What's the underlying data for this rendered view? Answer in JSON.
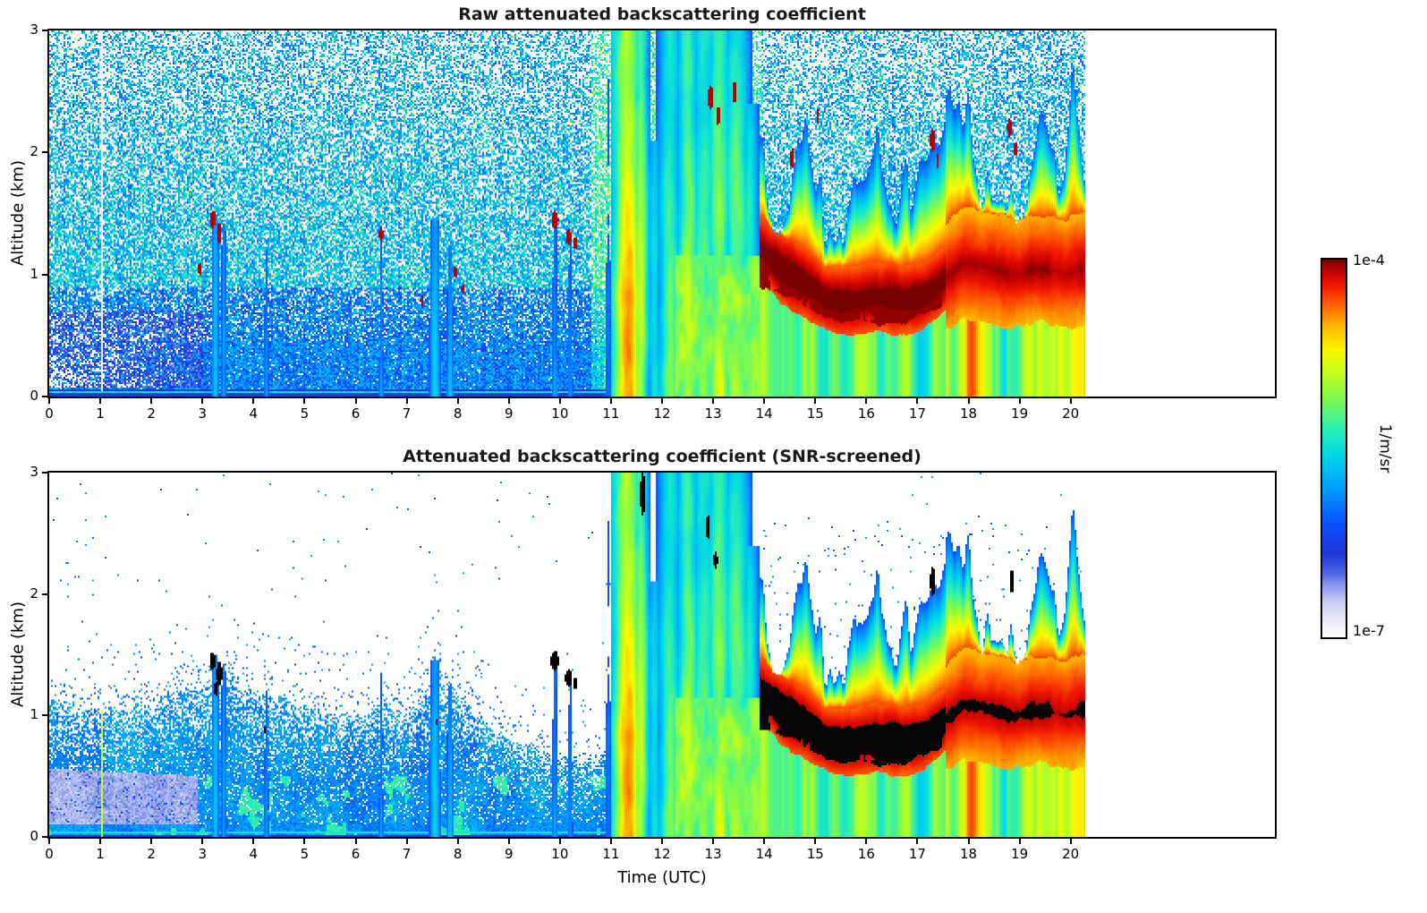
{
  "chart_data": [
    {
      "type": "heatmap",
      "title": "Raw attenuated backscattering coefficient",
      "xlabel": "",
      "ylabel": "Altitude (km)",
      "xlim": [
        0,
        24
      ],
      "ylim": [
        0,
        3
      ],
      "xticks": [
        0,
        1,
        2,
        3,
        4,
        5,
        6,
        7,
        8,
        9,
        10,
        11,
        12,
        13,
        14,
        15,
        16,
        17,
        18,
        19,
        20
      ],
      "yticks": [
        0,
        1,
        2,
        3
      ],
      "time_coverage_utc": [
        0,
        20.3
      ],
      "screened": false,
      "value_scale": {
        "max_label": "1e-4",
        "min_label": "1e-7",
        "unit": "1/m/sr"
      }
    },
    {
      "type": "heatmap",
      "title": "Attenuated backscattering coefficient (SNR-screened)",
      "xlabel": "Time (UTC)",
      "ylabel": "Altitude (km)",
      "xlim": [
        0,
        24
      ],
      "ylim": [
        0,
        3
      ],
      "xticks": [
        0,
        1,
        2,
        3,
        4,
        5,
        6,
        7,
        8,
        9,
        10,
        11,
        12,
        13,
        14,
        15,
        16,
        17,
        18,
        19,
        20
      ],
      "yticks": [
        0,
        1,
        2,
        3
      ],
      "time_coverage_utc": [
        0,
        20.3
      ],
      "screened": true,
      "value_scale": {
        "max_label": "1e-4",
        "min_label": "1e-7",
        "unit": "1/m/sr"
      }
    }
  ],
  "colorbar": {
    "max_label": "1e-4",
    "min_label": "1e-7",
    "unit_label": "1/m/sr"
  },
  "render_model": {
    "background": "#ffffff",
    "colormap_stops": [
      [
        0.0,
        "#ffffff"
      ],
      [
        0.045,
        "#e9e9f9"
      ],
      [
        0.09,
        "#c9cff4"
      ],
      [
        0.13,
        "#8fa0ec"
      ],
      [
        0.17,
        "#4b63e4"
      ],
      [
        0.22,
        "#2134d8"
      ],
      [
        0.3,
        "#0a52ff"
      ],
      [
        0.4,
        "#00a4ff"
      ],
      [
        0.48,
        "#00d8e6"
      ],
      [
        0.55,
        "#2cf0b4"
      ],
      [
        0.63,
        "#7dfa50"
      ],
      [
        0.7,
        "#c6ff1c"
      ],
      [
        0.76,
        "#fdf800"
      ],
      [
        0.83,
        "#ffae00"
      ],
      [
        0.88,
        "#ff6000"
      ],
      [
        0.93,
        "#f01800"
      ],
      [
        0.97,
        "#c00000"
      ],
      [
        1.0,
        "#760000"
      ]
    ],
    "features": {
      "data_end": 20.3,
      "gap_line_t": 1.04,
      "pale_zone": {
        "t_max": 2.9,
        "h_max": 0.48
      },
      "bl_top_path": [
        [
          0,
          1.1
        ],
        [
          1,
          1.05
        ],
        [
          2,
          1.12
        ],
        [
          3,
          1.22
        ],
        [
          3.5,
          1.32
        ],
        [
          4,
          1.22
        ],
        [
          5,
          1.05
        ],
        [
          6,
          1.0
        ],
        [
          6.6,
          1.12
        ],
        [
          7,
          0.98
        ],
        [
          7.6,
          1.35
        ],
        [
          8.1,
          1.15
        ],
        [
          8.6,
          0.92
        ],
        [
          9.2,
          0.76
        ],
        [
          9.8,
          0.68
        ],
        [
          10.4,
          0.62
        ],
        [
          11,
          0.72
        ],
        [
          11.3,
          0.8
        ]
      ],
      "plume_columns": [
        [
          10.95,
          0.08,
          2.6,
          0.42
        ],
        [
          11.1,
          0.05,
          1.8,
          0.4
        ],
        [
          11.32,
          0.18,
          3.0,
          1.0
        ],
        [
          11.58,
          0.1,
          3.0,
          0.84
        ],
        [
          11.85,
          0.1,
          2.1,
          0.62
        ],
        [
          12.15,
          0.16,
          3.0,
          0.74
        ],
        [
          12.5,
          0.15,
          3.0,
          0.8
        ],
        [
          12.82,
          0.18,
          3.0,
          0.72
        ],
        [
          13.12,
          0.16,
          3.0,
          0.8
        ],
        [
          13.45,
          0.18,
          3.0,
          0.76
        ],
        [
          13.72,
          0.12,
          2.4,
          0.68
        ]
      ],
      "minor_columns": [
        [
          3.25,
          0.05,
          1.5,
          0.55
        ],
        [
          3.42,
          0.04,
          1.42,
          0.5
        ],
        [
          4.25,
          0.04,
          1.2,
          0.42
        ],
        [
          6.5,
          0.04,
          1.35,
          0.45
        ],
        [
          7.55,
          0.07,
          1.45,
          0.55
        ],
        [
          7.85,
          0.05,
          1.25,
          0.5
        ],
        [
          9.9,
          0.05,
          1.5,
          0.45
        ],
        [
          10.2,
          0.05,
          1.35,
          0.45
        ]
      ],
      "broad_plume": {
        "t0": 12.25,
        "t1": 13.95,
        "h_max": 1.15
      },
      "layer_path": [
        [
          13.95,
          1.2
        ],
        [
          14.3,
          1.05
        ],
        [
          14.7,
          0.95
        ],
        [
          15.2,
          0.8
        ],
        [
          15.7,
          0.78
        ],
        [
          16.2,
          0.82
        ],
        [
          16.7,
          0.78
        ],
        [
          17.1,
          0.82
        ],
        [
          17.5,
          0.95
        ],
        [
          17.9,
          1.1
        ],
        [
          18.4,
          1.05
        ],
        [
          18.9,
          1.0
        ],
        [
          19.4,
          1.05
        ],
        [
          19.9,
          1.0
        ],
        [
          20.3,
          1.05
        ]
      ],
      "layer_halfwidth": 0.22,
      "dark_core": [
        [
          14.25,
          1.0
        ],
        [
          14.7,
          0.9
        ],
        [
          15.1,
          0.8
        ],
        [
          15.5,
          0.72
        ],
        [
          15.9,
          0.75
        ],
        [
          16.3,
          0.7
        ],
        [
          16.7,
          0.72
        ],
        [
          17.0,
          0.78
        ],
        [
          17.35,
          0.85
        ]
      ],
      "blobs_red": [
        [
          2.95,
          1.05,
          0.04,
          0.05
        ],
        [
          3.2,
          1.45,
          0.06,
          0.07
        ],
        [
          3.33,
          1.34,
          0.05,
          0.09
        ],
        [
          6.5,
          1.33,
          0.04,
          0.06
        ],
        [
          7.3,
          0.78,
          0.03,
          0.05
        ],
        [
          7.95,
          1.02,
          0.03,
          0.05
        ],
        [
          8.1,
          0.88,
          0.03,
          0.04
        ],
        [
          9.9,
          1.45,
          0.07,
          0.07
        ],
        [
          10.17,
          1.31,
          0.06,
          0.06
        ],
        [
          10.3,
          1.26,
          0.04,
          0.05
        ],
        [
          12.95,
          2.45,
          0.05,
          0.1
        ],
        [
          13.1,
          2.3,
          0.04,
          0.08
        ],
        [
          13.42,
          2.5,
          0.04,
          0.09
        ],
        [
          14.55,
          1.95,
          0.04,
          0.08
        ],
        [
          15.05,
          2.3,
          0.03,
          0.06
        ],
        [
          17.3,
          2.1,
          0.05,
          0.1
        ],
        [
          17.4,
          1.93,
          0.03,
          0.06
        ],
        [
          18.8,
          2.2,
          0.04,
          0.08
        ],
        [
          18.92,
          2.03,
          0.03,
          0.06
        ]
      ],
      "blobs_black": [
        [
          3.2,
          1.45,
          0.06,
          0.07
        ],
        [
          3.33,
          1.34,
          0.06,
          0.1
        ],
        [
          3.27,
          1.22,
          0.04,
          0.06
        ],
        [
          4.22,
          0.88,
          0.02,
          0.03
        ],
        [
          7.6,
          0.95,
          0.02,
          0.04
        ],
        [
          9.9,
          1.45,
          0.08,
          0.08
        ],
        [
          10.17,
          1.31,
          0.07,
          0.07
        ],
        [
          10.3,
          1.26,
          0.04,
          0.05
        ],
        [
          11.62,
          2.82,
          0.05,
          0.18
        ],
        [
          12.9,
          2.55,
          0.04,
          0.1
        ],
        [
          13.05,
          2.28,
          0.04,
          0.08
        ],
        [
          17.3,
          2.1,
          0.05,
          0.12
        ],
        [
          18.85,
          2.1,
          0.04,
          0.1
        ]
      ]
    }
  }
}
